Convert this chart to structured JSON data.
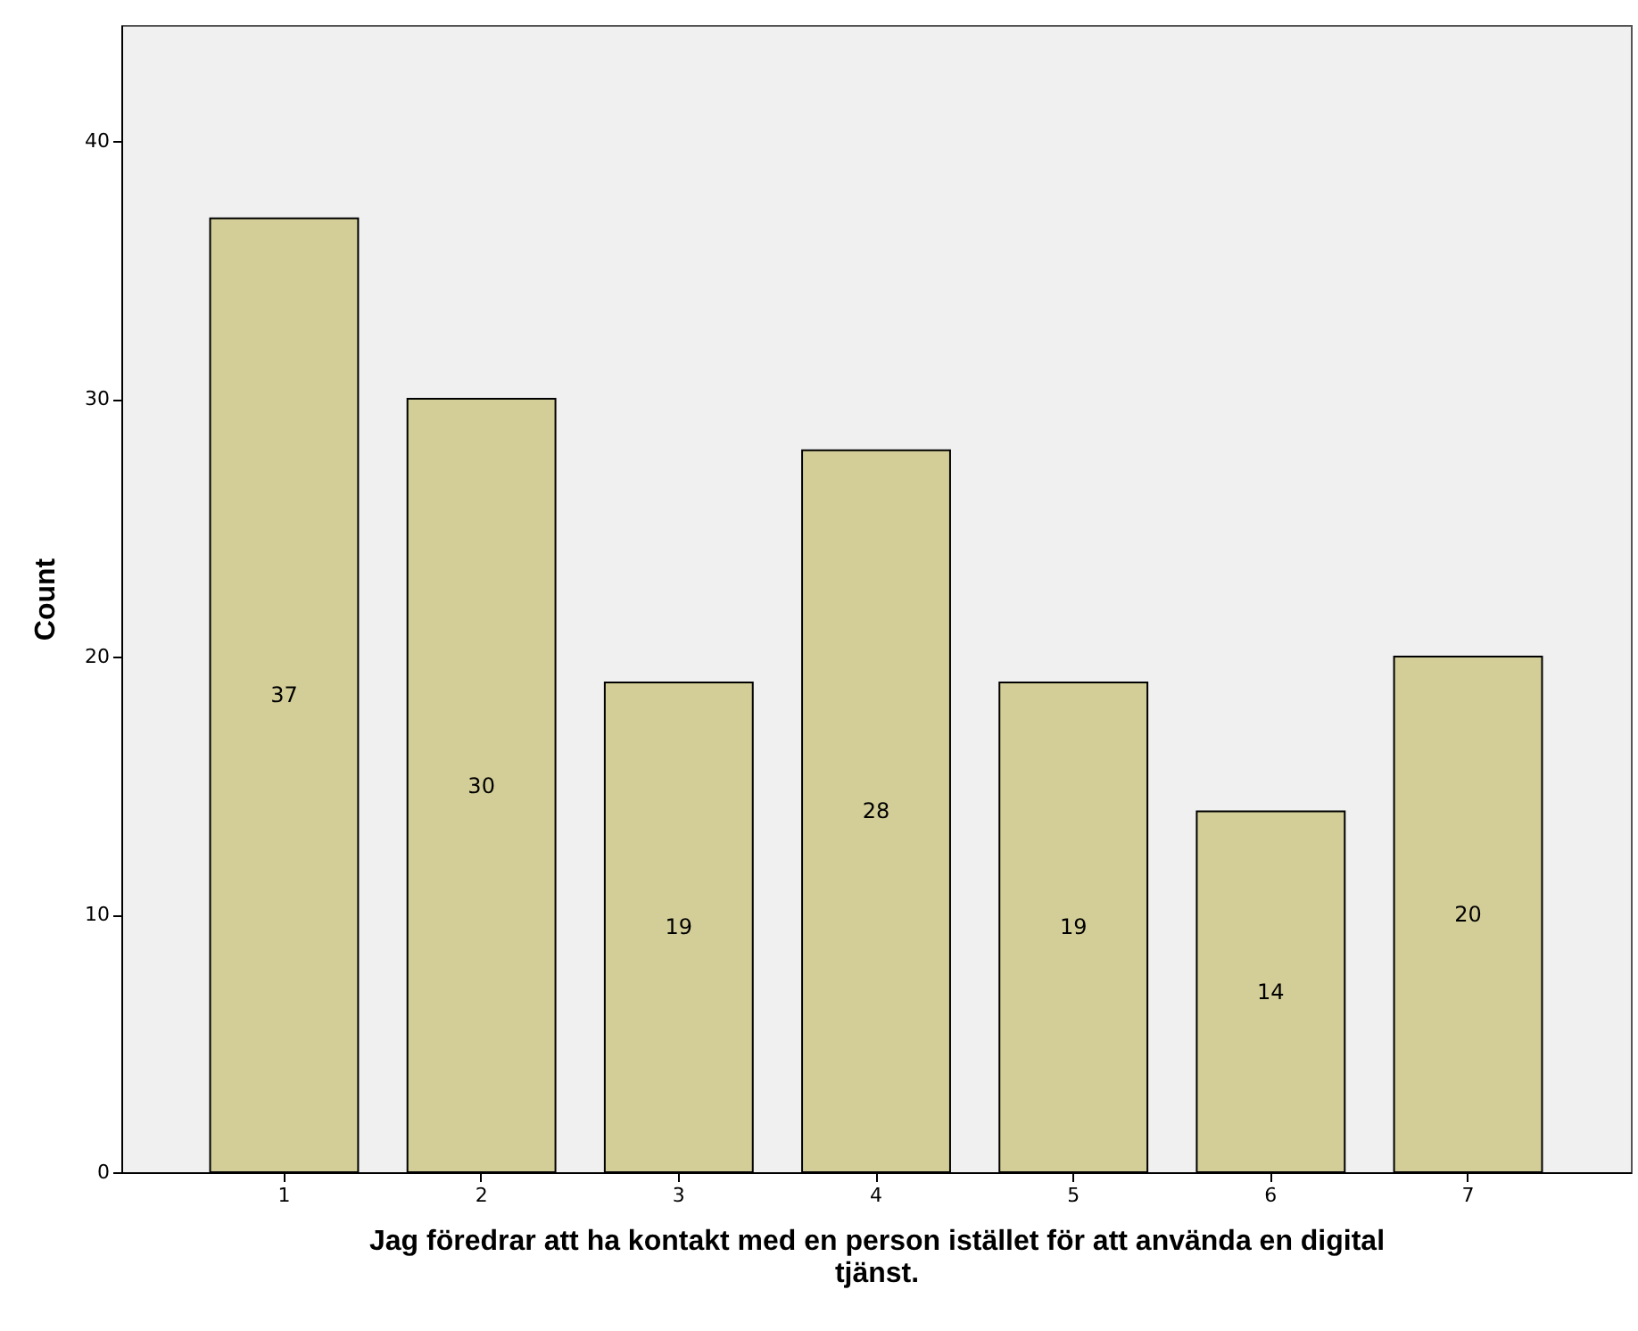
{
  "chart_data": {
    "type": "bar",
    "xlabel": "Jag föredrar att ha kontakt med en person istället för att använda en digital tjänst.",
    "ylabel": "Count",
    "categories": [
      "1",
      "2",
      "3",
      "4",
      "5",
      "6",
      "7"
    ],
    "values": [
      37,
      30,
      19,
      28,
      19,
      14,
      20
    ],
    "color": "#d3ce97",
    "ylim": [
      0,
      44.5
    ],
    "yticks": [
      0,
      10,
      20,
      30,
      40
    ],
    "data_labels": true,
    "grid": false
  }
}
